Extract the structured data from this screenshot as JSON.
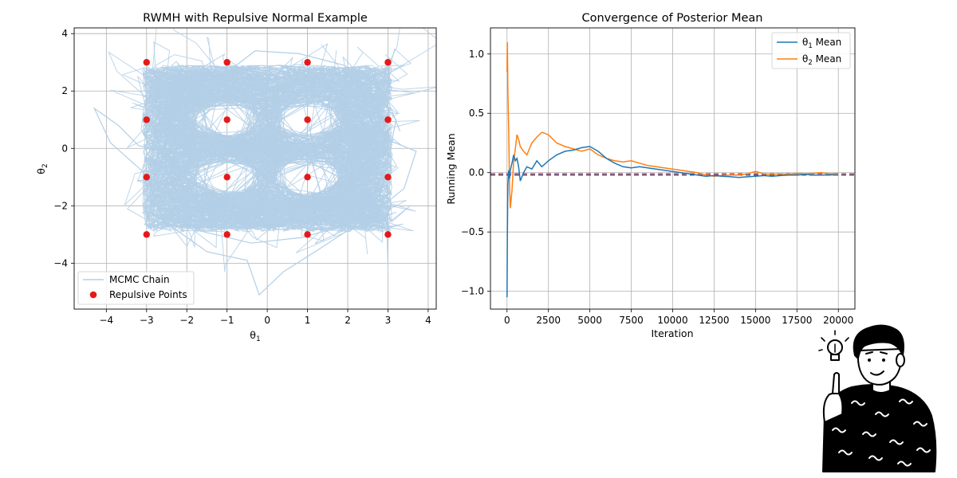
{
  "chart_data": [
    {
      "type": "scatter",
      "title": "RWMH with Repulsive Normal Example",
      "xlabel": "θ",
      "xlabel_sub": "1",
      "ylabel": "θ",
      "ylabel_sub": "2",
      "xlim": [
        -4.8,
        4.2
      ],
      "ylim": [
        -5.6,
        4.2
      ],
      "xticks": [
        -4,
        -3,
        -2,
        -1,
        0,
        1,
        2,
        3,
        4
      ],
      "yticks": [
        -4,
        -2,
        0,
        2,
        4
      ],
      "grid": true,
      "legend_position": "lower-left",
      "series": [
        {
          "name": "MCMC Chain",
          "kind": "line",
          "color": "#b3cfe6",
          "points": [
            [
              -3.0,
              0.6
            ],
            [
              -2.2,
              1.9
            ],
            [
              -1.2,
              2.6
            ],
            [
              0.3,
              2.9
            ],
            [
              1.6,
              2.7
            ],
            [
              2.6,
              2.1
            ],
            [
              3.2,
              1.0
            ],
            [
              3.0,
              -0.4
            ],
            [
              2.8,
              -1.6
            ],
            [
              2.1,
              -2.6
            ],
            [
              0.9,
              -3.1
            ],
            [
              -0.4,
              -3.3
            ],
            [
              -1.6,
              -2.9
            ],
            [
              -2.6,
              -2.1
            ],
            [
              -3.1,
              -0.8
            ],
            [
              -3.9,
              0.2
            ],
            [
              -4.3,
              1.4
            ],
            [
              -3.7,
              0.8
            ],
            [
              -3.2,
              0.1
            ],
            [
              -2.0,
              -0.3
            ],
            [
              -0.6,
              0.1
            ],
            [
              0.5,
              -0.2
            ],
            [
              1.7,
              0.2
            ],
            [
              3.0,
              0.3
            ],
            [
              3.7,
              -0.1
            ],
            [
              3.4,
              -1.4
            ],
            [
              2.6,
              -2.3
            ],
            [
              1.3,
              -3.5
            ],
            [
              0.4,
              -4.3
            ],
            [
              -0.2,
              -5.1
            ],
            [
              -0.5,
              -3.9
            ],
            [
              -1.5,
              -3.6
            ],
            [
              -2.6,
              -2.5
            ],
            [
              -2.9,
              -1.3
            ],
            [
              -2.4,
              0.5
            ],
            [
              -1.6,
              2.0
            ],
            [
              -0.3,
              3.4
            ],
            [
              0.8,
              3.3
            ],
            [
              1.9,
              2.9
            ],
            [
              2.9,
              2.0
            ],
            [
              3.3,
              0.6
            ]
          ]
        },
        {
          "name": "Repulsive Points",
          "kind": "scatter",
          "color": "#e6191a",
          "points": [
            [
              -3,
              3
            ],
            [
              -1,
              3
            ],
            [
              1,
              3
            ],
            [
              3,
              3
            ],
            [
              -3,
              1
            ],
            [
              -1,
              1
            ],
            [
              1,
              1
            ],
            [
              3,
              1
            ],
            [
              -3,
              -1
            ],
            [
              -1,
              -1
            ],
            [
              1,
              -1
            ],
            [
              3,
              -1
            ],
            [
              -3,
              -3
            ],
            [
              -1,
              -3
            ],
            [
              1,
              -3
            ],
            [
              3,
              -3
            ]
          ]
        }
      ]
    },
    {
      "type": "line",
      "title": "Convergence of Posterior Mean",
      "xlabel": "Iteration",
      "ylabel": "Running Mean",
      "xlim": [
        -1000,
        21000
      ],
      "ylim": [
        -1.15,
        1.22
      ],
      "xticks": [
        0,
        2500,
        5000,
        7500,
        10000,
        12500,
        15000,
        17500,
        20000
      ],
      "yticks": [
        -1.0,
        -0.5,
        0.0,
        0.5,
        1.0
      ],
      "ytick_labels": [
        "−1.0",
        "−0.5",
        "0.0",
        "0.5",
        "1.0"
      ],
      "grid": true,
      "legend_position": "top-right",
      "reference_lines": [
        {
          "y": -0.015,
          "color": "#d62728",
          "style": "dashed"
        },
        {
          "y": -0.015,
          "color": "#1f3c88",
          "style": "dashed"
        }
      ],
      "series": [
        {
          "name": "θ",
          "name_sub": "1",
          "name_suffix": " Mean",
          "color": "#1f77b4",
          "x": [
            1,
            20,
            50,
            100,
            150,
            200,
            300,
            400,
            500,
            600,
            700,
            800,
            1000,
            1200,
            1500,
            1800,
            2100,
            2500,
            3000,
            3500,
            4000,
            4500,
            5000,
            5500,
            6000,
            6500,
            7000,
            7500,
            8000,
            8500,
            9000,
            9500,
            10000,
            10500,
            11000,
            11500,
            12000,
            12500,
            13000,
            13500,
            14000,
            14500,
            15000,
            15500,
            16000,
            16500,
            17000,
            17500,
            18000,
            18500,
            19000,
            19500,
            20000
          ],
          "values": [
            -1.05,
            -0.55,
            -0.1,
            0.02,
            -0.05,
            0.02,
            0.08,
            0.15,
            0.1,
            0.12,
            0.05,
            -0.07,
            0.0,
            0.05,
            0.03,
            0.1,
            0.05,
            0.1,
            0.15,
            0.18,
            0.19,
            0.21,
            0.22,
            0.18,
            0.12,
            0.08,
            0.05,
            0.04,
            0.05,
            0.04,
            0.03,
            0.02,
            0.01,
            0.0,
            -0.01,
            -0.02,
            -0.03,
            -0.025,
            -0.03,
            -0.035,
            -0.04,
            -0.035,
            -0.03,
            -0.025,
            -0.03,
            -0.025,
            -0.02,
            -0.02,
            -0.015,
            -0.02,
            -0.02,
            -0.018,
            -0.02
          ]
        },
        {
          "name": "θ",
          "name_sub": "2",
          "name_suffix": " Mean",
          "color": "#ff7f0e",
          "x": [
            1,
            20,
            50,
            100,
            150,
            200,
            300,
            400,
            500,
            600,
            700,
            800,
            1000,
            1200,
            1500,
            1800,
            2100,
            2500,
            3000,
            3500,
            4000,
            4500,
            5000,
            5500,
            6000,
            6500,
            7000,
            7500,
            8000,
            8500,
            9000,
            9500,
            10000,
            10500,
            11000,
            11500,
            12000,
            12500,
            13000,
            13500,
            14000,
            14500,
            15000,
            15500,
            16000,
            16500,
            17000,
            17500,
            18000,
            18500,
            19000,
            19500,
            20000
          ],
          "values": [
            0.85,
            1.1,
            0.7,
            0.35,
            -0.1,
            -0.3,
            -0.15,
            0.1,
            0.2,
            0.32,
            0.28,
            0.22,
            0.18,
            0.15,
            0.25,
            0.3,
            0.34,
            0.32,
            0.25,
            0.22,
            0.2,
            0.18,
            0.2,
            0.15,
            0.12,
            0.1,
            0.09,
            0.1,
            0.08,
            0.06,
            0.05,
            0.04,
            0.03,
            0.02,
            0.01,
            0.0,
            -0.02,
            -0.03,
            -0.025,
            -0.02,
            -0.02,
            -0.01,
            0.01,
            -0.01,
            -0.015,
            -0.01,
            -0.015,
            -0.005,
            -0.01,
            -0.005,
            0.0,
            -0.01,
            -0.005
          ]
        }
      ]
    }
  ],
  "illustration": {
    "name": "thinking-person-lightbulb-illustration"
  }
}
